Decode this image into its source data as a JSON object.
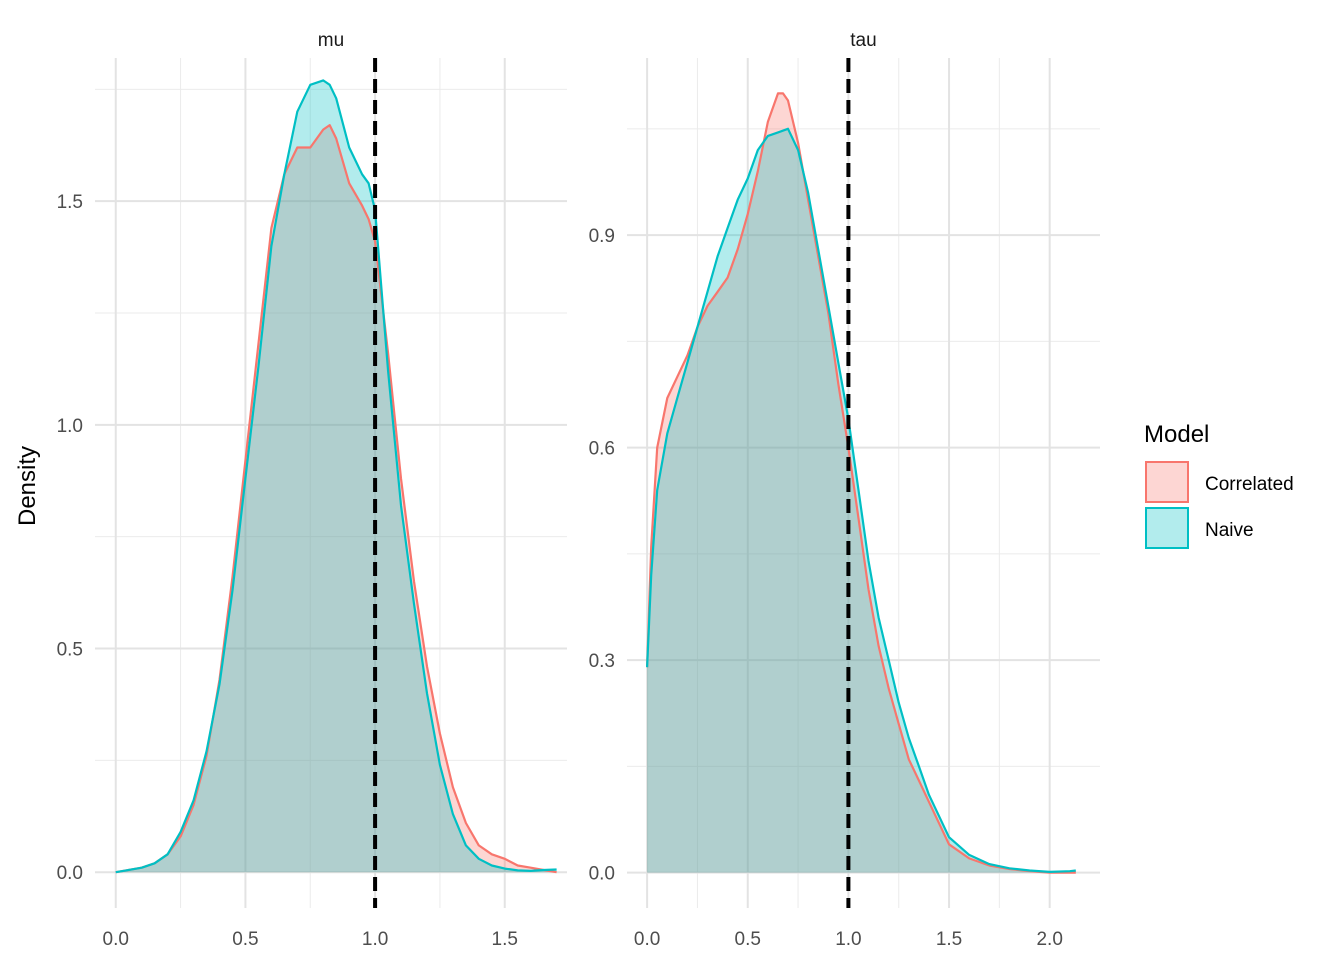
{
  "chart_data": {
    "type": "area",
    "subtype": "faceted density",
    "ylabel": "Density",
    "legend": {
      "title": "Model",
      "placement": "right",
      "entries": [
        {
          "name": "Correlated",
          "color": "#F8766D"
        },
        {
          "name": "Naive",
          "color": "#00BFC4"
        }
      ]
    },
    "grid": true,
    "facets": [
      {
        "title": "mu",
        "xlim": [
          -0.08,
          1.74
        ],
        "ylim": [
          -0.08,
          1.82
        ],
        "xticks": [
          0.0,
          0.5,
          1.0,
          1.5
        ],
        "xtick_labels": [
          "0.0",
          "0.5",
          "1.0",
          "1.5"
        ],
        "yticks": [
          0.0,
          0.5,
          1.0,
          1.5
        ],
        "ytick_labels": [
          "0.0",
          "0.5",
          "1.0",
          "1.5"
        ],
        "reference_line_x": 1.0,
        "series": [
          {
            "name": "Correlated",
            "x": [
              0.0,
              0.1,
              0.15,
              0.2,
              0.25,
              0.3,
              0.35,
              0.4,
              0.45,
              0.5,
              0.55,
              0.6,
              0.65,
              0.7,
              0.75,
              0.8,
              0.825,
              0.85,
              0.9,
              0.95,
              0.975,
              1.0,
              1.05,
              1.1,
              1.15,
              1.2,
              1.25,
              1.3,
              1.35,
              1.4,
              1.45,
              1.5,
              1.55,
              1.6,
              1.65,
              1.7
            ],
            "y": [
              0.0,
              0.01,
              0.02,
              0.04,
              0.08,
              0.15,
              0.26,
              0.43,
              0.66,
              0.92,
              1.18,
              1.44,
              1.56,
              1.62,
              1.62,
              1.66,
              1.67,
              1.64,
              1.54,
              1.49,
              1.46,
              1.41,
              1.16,
              0.88,
              0.65,
              0.46,
              0.31,
              0.19,
              0.11,
              0.06,
              0.04,
              0.03,
              0.015,
              0.01,
              0.005,
              0.0
            ]
          },
          {
            "name": "Naive",
            "x": [
              0.0,
              0.1,
              0.15,
              0.2,
              0.25,
              0.3,
              0.35,
              0.4,
              0.45,
              0.5,
              0.55,
              0.6,
              0.65,
              0.7,
              0.75,
              0.8,
              0.825,
              0.85,
              0.9,
              0.95,
              0.975,
              1.0,
              1.05,
              1.1,
              1.15,
              1.2,
              1.25,
              1.3,
              1.35,
              1.4,
              1.45,
              1.5,
              1.55,
              1.6,
              1.65,
              1.7
            ],
            "y": [
              0.0,
              0.01,
              0.02,
              0.04,
              0.09,
              0.16,
              0.27,
              0.42,
              0.63,
              0.88,
              1.13,
              1.4,
              1.56,
              1.7,
              1.76,
              1.77,
              1.76,
              1.73,
              1.62,
              1.56,
              1.54,
              1.48,
              1.12,
              0.82,
              0.6,
              0.4,
              0.24,
              0.13,
              0.06,
              0.03,
              0.015,
              0.008,
              0.004,
              0.003,
              0.005,
              0.006
            ]
          }
        ]
      },
      {
        "title": "tau",
        "xlim": [
          -0.1,
          2.25
        ],
        "ylim": [
          -0.05,
          1.15
        ],
        "xticks": [
          0.0,
          0.5,
          1.0,
          1.5,
          2.0
        ],
        "xtick_labels": [
          "0.0",
          "0.5",
          "1.0",
          "1.5",
          "2.0"
        ],
        "yticks": [
          0.0,
          0.3,
          0.6,
          0.9
        ],
        "ytick_labels": [
          "0.0",
          "0.3",
          "0.6",
          "0.9"
        ],
        "reference_line_x": 1.0,
        "series": [
          {
            "name": "Correlated",
            "x": [
              0.0,
              0.02,
              0.05,
              0.1,
              0.15,
              0.2,
              0.25,
              0.3,
              0.35,
              0.4,
              0.45,
              0.5,
              0.55,
              0.6,
              0.65,
              0.675,
              0.7,
              0.75,
              0.8,
              0.85,
              0.9,
              0.95,
              1.0,
              1.05,
              1.1,
              1.15,
              1.2,
              1.25,
              1.3,
              1.35,
              1.4,
              1.5,
              1.6,
              1.7,
              1.8,
              1.9,
              2.0,
              2.1,
              2.13
            ],
            "y": [
              0.29,
              0.46,
              0.6,
              0.67,
              0.7,
              0.73,
              0.77,
              0.8,
              0.82,
              0.84,
              0.88,
              0.93,
              0.99,
              1.06,
              1.1,
              1.1,
              1.09,
              1.03,
              0.95,
              0.87,
              0.79,
              0.69,
              0.6,
              0.5,
              0.4,
              0.32,
              0.26,
              0.21,
              0.16,
              0.13,
              0.1,
              0.04,
              0.02,
              0.01,
              0.005,
              0.002,
              0.0,
              0.0,
              0.0
            ]
          },
          {
            "name": "Naive",
            "x": [
              0.0,
              0.02,
              0.05,
              0.1,
              0.15,
              0.2,
              0.25,
              0.3,
              0.35,
              0.4,
              0.45,
              0.5,
              0.55,
              0.6,
              0.65,
              0.7,
              0.75,
              0.8,
              0.85,
              0.9,
              0.95,
              1.0,
              1.05,
              1.1,
              1.15,
              1.2,
              1.25,
              1.3,
              1.35,
              1.4,
              1.5,
              1.6,
              1.7,
              1.8,
              1.9,
              2.0,
              2.1,
              2.13
            ],
            "y": [
              0.29,
              0.42,
              0.54,
              0.62,
              0.67,
              0.72,
              0.77,
              0.82,
              0.87,
              0.91,
              0.95,
              0.98,
              1.02,
              1.04,
              1.045,
              1.05,
              1.02,
              0.96,
              0.88,
              0.8,
              0.72,
              0.64,
              0.54,
              0.44,
              0.36,
              0.3,
              0.24,
              0.19,
              0.15,
              0.11,
              0.05,
              0.025,
              0.012,
              0.006,
              0.003,
              0.001,
              0.002,
              0.003
            ]
          }
        ]
      }
    ]
  }
}
